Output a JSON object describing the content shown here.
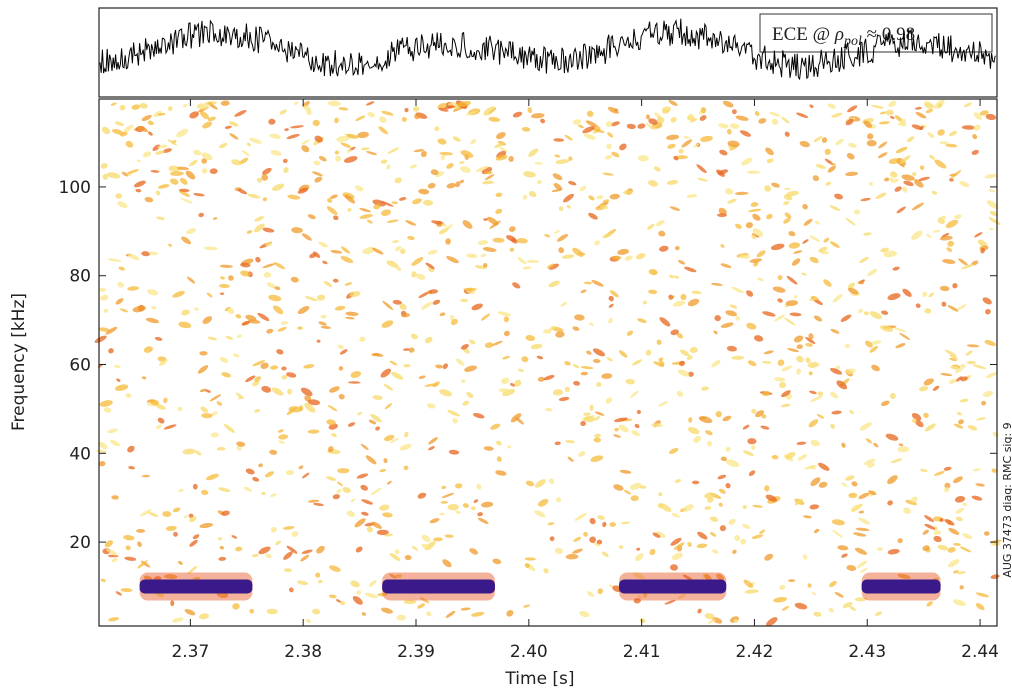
{
  "chart_data": {
    "type": "spectrogram",
    "xlabel": "Time [s]",
    "ylabel": "Frequency [kHz]",
    "xlim": [
      2.3619,
      2.4415
    ],
    "xticks": [
      2.37,
      2.38,
      2.39,
      {
        "value": 2.4,
        "label": "2.40"
      },
      2.41,
      2.42,
      2.43,
      2.44
    ],
    "ylim": [
      1.1,
      119.8
    ],
    "yticks": [
      20,
      40,
      60,
      80,
      100
    ],
    "side_note": "AUG 37473 diag: RMC sig: 9",
    "inset_label": {
      "prefix": "ECE @",
      "symbol": "ρ",
      "subscript": "pol",
      "suffix": "≈ 0.98"
    },
    "bursts": [
      {
        "start": 2.3655,
        "end": 2.3755,
        "freq": 10
      },
      {
        "start": 2.387,
        "end": 2.397,
        "freq": 10
      },
      {
        "start": 2.408,
        "end": 2.4175,
        "freq": 10
      },
      {
        "start": 2.4295,
        "end": 2.4365,
        "freq": 10
      }
    ],
    "burst_color": "#3a1a8a"
  }
}
